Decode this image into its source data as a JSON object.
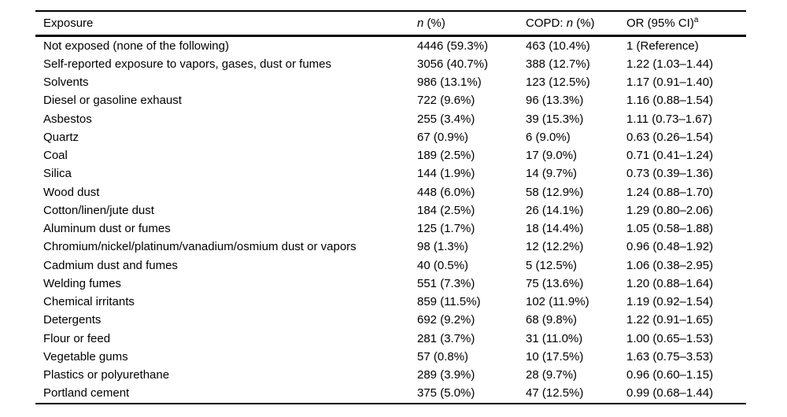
{
  "table": {
    "columns": {
      "exposure": "Exposure",
      "n_italic": "n",
      "n_suffix": " (%)",
      "copd_prefix": "COPD: ",
      "copd_italic": "n",
      "copd_suffix": " (%)",
      "or_label": "OR (95% CI)",
      "or_superscript": "a"
    },
    "rows": [
      [
        "Not exposed (none of the following)",
        "4446 (59.3%)",
        "463 (10.4%)",
        "1 (Reference)"
      ],
      [
        "Self-reported exposure to vapors, gases, dust or fumes",
        "3056 (40.7%)",
        "388 (12.7%)",
        "1.22 (1.03–1.44)"
      ],
      [
        "Solvents",
        "986 (13.1%)",
        "123 (12.5%)",
        "1.17 (0.91–1.40)"
      ],
      [
        "Diesel or gasoline exhaust",
        "722 (9.6%)",
        "96 (13.3%)",
        "1.16 (0.88–1.54)"
      ],
      [
        "Asbestos",
        "255 (3.4%)",
        "39 (15.3%)",
        "1.11 (0.73–1.67)"
      ],
      [
        "Quartz",
        "67 (0.9%)",
        "6 (9.0%)",
        "0.63 (0.26–1.54)"
      ],
      [
        "Coal",
        "189 (2.5%)",
        "17 (9.0%)",
        "0.71 (0.41–1.24)"
      ],
      [
        "Silica",
        "144 (1.9%)",
        "14 (9.7%)",
        "0.73 (0.39–1.36)"
      ],
      [
        "Wood dust",
        "448 (6.0%)",
        "58 (12.9%)",
        "1.24 (0.88–1.70)"
      ],
      [
        "Cotton/linen/jute dust",
        "184 (2.5%)",
        "26 (14.1%)",
        "1.29 (0.80–2.06)"
      ],
      [
        "Aluminum dust or fumes",
        "125 (1.7%)",
        "18 (14.4%)",
        "1.05 (0.58–1.88)"
      ],
      [
        "Chromium/nickel/platinum/vanadium/osmium dust or vapors",
        "98 (1.3%)",
        "12 (12.2%)",
        "0.96 (0.48–1.92)"
      ],
      [
        "Cadmium dust and fumes",
        "40 (0.5%)",
        "5 (12.5%)",
        "1.06 (0.38–2.95)"
      ],
      [
        "Welding fumes",
        "551 (7.3%)",
        "75 (13.6%)",
        "1.20 (0.88–1.64)"
      ],
      [
        "Chemical irritants",
        "859 (11.5%)",
        "102 (11.9%)",
        "1.19 (0.92–1.54)"
      ],
      [
        "Detergents",
        "692 (9.2%)",
        "68 (9.8%)",
        "1.22 (0.91–1.65)"
      ],
      [
        "Flour or feed",
        "281 (3.7%)",
        "31 (11.0%)",
        "1.00 (0.65–1.53)"
      ],
      [
        "Vegetable gums",
        "57 (0.8%)",
        "10 (17.5%)",
        "1.63 (0.75–3.53)"
      ],
      [
        "Plastics or polyurethane",
        "289 (3.9%)",
        "28 (9.7%)",
        "0.96 (0.60–1.15)"
      ],
      [
        "Portland cement",
        "375 (5.0%)",
        "47 (12.5%)",
        "0.99 (0.68–1.44)"
      ]
    ]
  }
}
